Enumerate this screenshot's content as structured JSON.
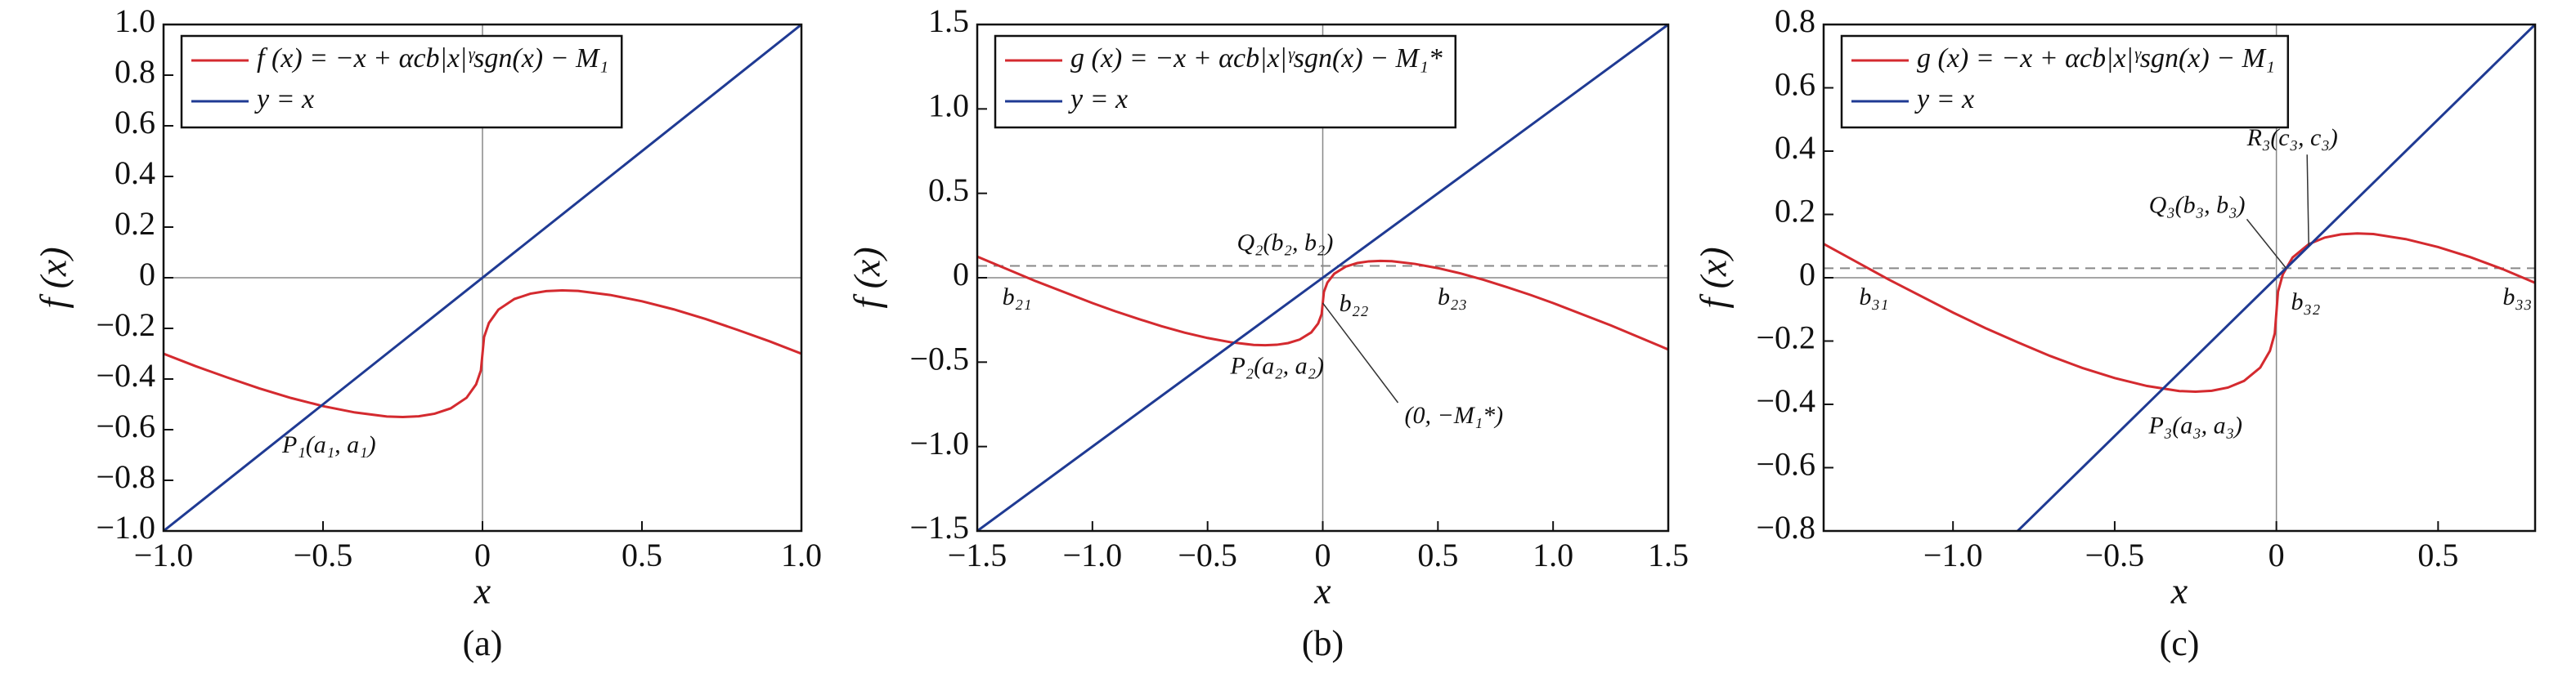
{
  "chart_data": [
    {
      "type": "line",
      "xlabel": "x",
      "ylabel": "f (x)",
      "caption": "(a)",
      "xlim": [
        -1,
        1
      ],
      "ylim": [
        -1,
        1
      ],
      "xticks": [
        {
          "value": -1,
          "label": "−1.0"
        },
        {
          "value": -0.5,
          "label": "−0.5"
        },
        0,
        0.5,
        {
          "value": 1,
          "label": "1.0"
        }
      ],
      "yticks": [
        {
          "value": -1,
          "label": "−1.0"
        },
        {
          "value": -0.8,
          "label": "−0.8"
        },
        {
          "value": -0.6,
          "label": "−0.6"
        },
        {
          "value": -0.4,
          "label": "−0.4"
        },
        {
          "value": -0.2,
          "label": "−0.2"
        },
        0,
        0.2,
        0.4,
        0.6,
        0.8,
        {
          "value": 1,
          "label": "1.0"
        }
      ],
      "series": [
        {
          "name": "f (x) = −x + αcb|x|ᵞsgn(x) − M₁",
          "color": "#d42a2f",
          "x": [
            -1,
            -0.9,
            -0.8,
            -0.7,
            -0.6,
            -0.5,
            -0.4,
            -0.3,
            -0.25,
            -0.2,
            -0.15,
            -0.1,
            -0.05,
            -0.02,
            -0.005,
            0,
            0.005,
            0.02,
            0.05,
            0.1,
            0.15,
            0.2,
            0.25,
            0.3,
            0.4,
            0.5,
            0.6,
            0.7,
            0.8,
            0.9,
            1
          ],
          "values": [
            -0.3,
            -0.349,
            -0.394,
            -0.437,
            -0.475,
            -0.507,
            -0.532,
            -0.548,
            -0.55,
            -0.547,
            -0.537,
            -0.516,
            -0.474,
            -0.421,
            -0.366,
            -0.3,
            -0.234,
            -0.179,
            -0.126,
            -0.084,
            -0.063,
            -0.053,
            -0.05,
            -0.052,
            -0.068,
            -0.093,
            -0.125,
            -0.163,
            -0.206,
            -0.251,
            -0.3
          ]
        },
        {
          "name": "y = x",
          "color": "#1f3a93",
          "x": [
            -1,
            1
          ],
          "values": [
            -1,
            1
          ]
        }
      ],
      "annotations": [
        {
          "text": "P₁(a₁, a₁)",
          "x": -0.5,
          "y": -0.5
        }
      ]
    },
    {
      "type": "line",
      "xlabel": "x",
      "ylabel": "f (x)",
      "caption": "(b)",
      "xlim": [
        -1.5,
        1.5
      ],
      "ylim": [
        -1.5,
        1.5
      ],
      "xticks": [
        {
          "value": -1.5,
          "label": "−1.5"
        },
        {
          "value": -1,
          "label": "−1.0"
        },
        {
          "value": -0.5,
          "label": "−0.5"
        },
        0,
        0.5,
        {
          "value": 1,
          "label": "1.0"
        },
        1.5
      ],
      "yticks": [
        {
          "value": -1.5,
          "label": "−1.5"
        },
        {
          "value": -1,
          "label": "−1.0"
        },
        {
          "value": -0.5,
          "label": "−0.5"
        },
        0,
        0.5,
        {
          "value": 1,
          "label": "1.0"
        },
        1.5
      ],
      "hline": 0.07,
      "series": [
        {
          "name": "g (x) = −x + αcb|x|ᵞsgn(x) − M₁*",
          "color": "#d42a2f",
          "x": [
            -1.5,
            -1.25,
            -1,
            -0.9,
            -0.8,
            -0.7,
            -0.6,
            -0.5,
            -0.4,
            -0.3,
            -0.25,
            -0.2,
            -0.15,
            -0.1,
            -0.05,
            -0.02,
            -0.005,
            0,
            0.005,
            0.02,
            0.05,
            0.1,
            0.15,
            0.2,
            0.25,
            0.3,
            0.4,
            0.5,
            0.6,
            0.7,
            0.8,
            0.9,
            1,
            1.25,
            1.5
          ],
          "values": [
            0.125,
            -0.018,
            -0.15,
            -0.199,
            -0.244,
            -0.287,
            -0.325,
            -0.357,
            -0.382,
            -0.398,
            -0.4,
            -0.397,
            -0.387,
            -0.366,
            -0.324,
            -0.271,
            -0.216,
            -0.15,
            -0.084,
            -0.029,
            0.024,
            0.066,
            0.087,
            0.097,
            0.1,
            0.098,
            0.082,
            0.057,
            0.025,
            -0.013,
            -0.056,
            -0.101,
            -0.15,
            -0.282,
            -0.425
          ]
        },
        {
          "name": "y = x",
          "color": "#1f3a93",
          "x": [
            -1.5,
            1.5
          ],
          "values": [
            -1.5,
            1.5
          ]
        }
      ],
      "annotations": [
        {
          "text": "Q₂(b₂, b₂)",
          "x": 0.06,
          "y": 0.06
        },
        {
          "text": "b₂₁",
          "x": -1.37,
          "y": 0
        },
        {
          "text": "b₂₂",
          "x": 0.05,
          "y": 0
        },
        {
          "text": "b₂₃",
          "x": 0.52,
          "y": 0
        },
        {
          "text": "P₂(a₂, a₂)",
          "x": -0.38,
          "y": -0.38
        },
        {
          "text": "(0, −M₁*)",
          "x": 0,
          "y": -0.15
        }
      ]
    },
    {
      "type": "line",
      "xlabel": "x",
      "ylabel": "f (x)",
      "caption": "(c)",
      "xlim": [
        -1.4,
        0.8
      ],
      "ylim": [
        -0.8,
        0.8
      ],
      "xticks": [
        {
          "value": -1,
          "label": "−1.0"
        },
        {
          "value": -0.5,
          "label": "−0.5"
        },
        0,
        0.5
      ],
      "yticks": [
        {
          "value": -0.8,
          "label": "−0.8"
        },
        {
          "value": -0.6,
          "label": "−0.6"
        },
        {
          "value": -0.4,
          "label": "−0.4"
        },
        {
          "value": -0.2,
          "label": "−0.2"
        },
        0,
        0.2,
        0.4,
        0.6,
        0.8
      ],
      "hline": 0.03,
      "series": [
        {
          "name": "g (x) = −x + αcb|x|ᵞsgn(x) − M₁",
          "color": "#d42a2f",
          "x": [
            -1.4,
            -1.2,
            -1,
            -0.9,
            -0.8,
            -0.7,
            -0.6,
            -0.5,
            -0.4,
            -0.3,
            -0.25,
            -0.2,
            -0.15,
            -0.1,
            -0.05,
            -0.02,
            -0.005,
            0,
            0.005,
            0.02,
            0.05,
            0.1,
            0.15,
            0.2,
            0.25,
            0.3,
            0.4,
            0.5,
            0.6,
            0.7,
            0.8
          ],
          "values": [
            0.107,
            -0.005,
            -0.11,
            -0.159,
            -0.204,
            -0.247,
            -0.285,
            -0.317,
            -0.342,
            -0.358,
            -0.36,
            -0.357,
            -0.347,
            -0.326,
            -0.284,
            -0.231,
            -0.176,
            -0.11,
            -0.044,
            0.011,
            0.064,
            0.106,
            0.127,
            0.137,
            0.14,
            0.138,
            0.122,
            0.097,
            0.065,
            0.027,
            -0.016
          ]
        },
        {
          "name": "y = x",
          "color": "#1f3a93",
          "x": [
            -0.8,
            0.8
          ],
          "values": [
            -0.8,
            0.8
          ]
        }
      ],
      "annotations": [
        {
          "text": "R₃(c₃, c₃)",
          "x": 0.1,
          "y": 0.1
        },
        {
          "text": "Q₃(b₃, b₃)",
          "x": 0.03,
          "y": 0.03
        },
        {
          "text": "b₃₁",
          "x": -1.27,
          "y": 0
        },
        {
          "text": "b₃₂",
          "x": 0.03,
          "y": 0
        },
        {
          "text": "b₃₃",
          "x": 0.73,
          "y": 0
        },
        {
          "text": "P₃(a₃, a₃)",
          "x": -0.25,
          "y": -0.36
        }
      ]
    }
  ]
}
